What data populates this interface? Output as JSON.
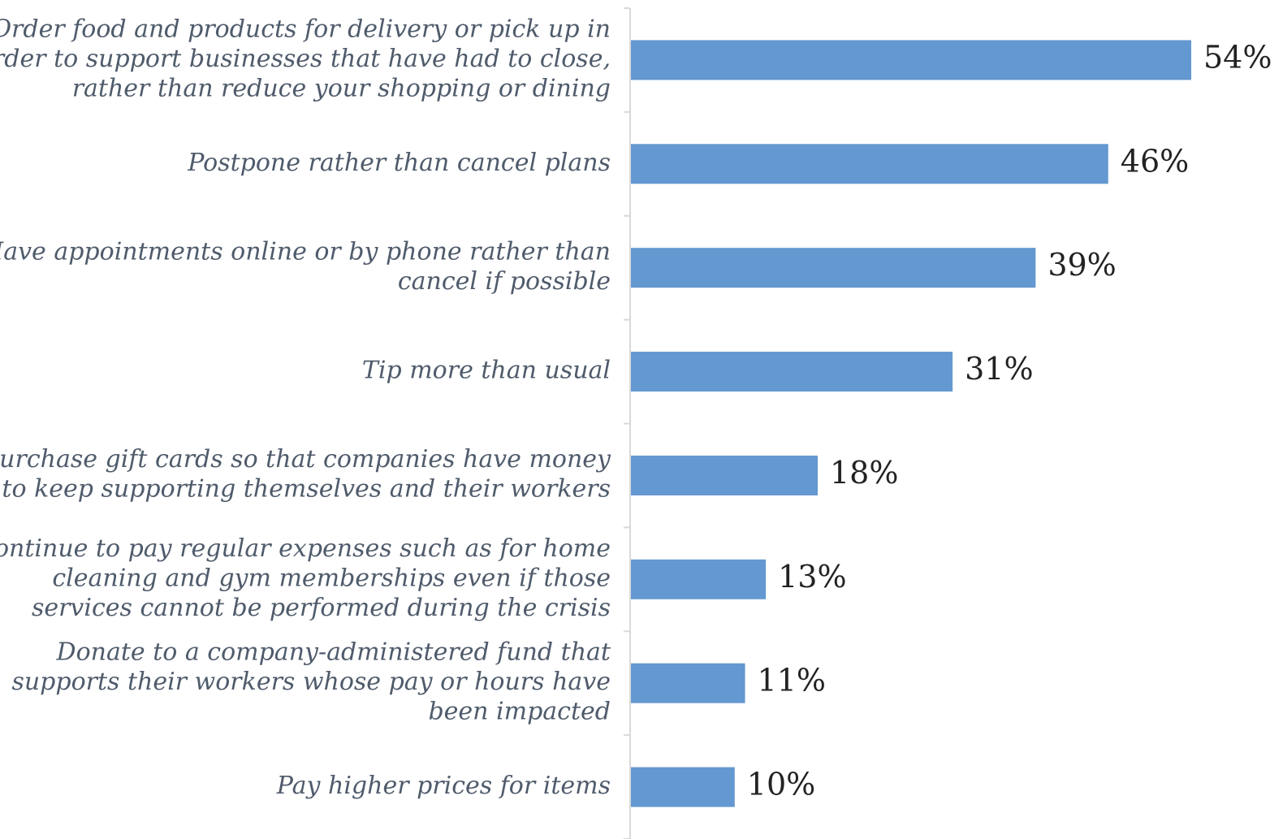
{
  "chart_data": {
    "type": "bar",
    "orientation": "horizontal",
    "title": "",
    "xlabel": "",
    "ylabel": "",
    "xlim": [
      0,
      54
    ],
    "grid": false,
    "bar_color": "#6398d0",
    "axis_color": "#d9d9d9",
    "categories": [
      [
        "Order food and products for delivery or pick up in",
        "order to support businesses that have had to close,",
        "rather than reduce your shopping or dining"
      ],
      [
        "Postpone rather than cancel plans"
      ],
      [
        "Have appointments online or by phone rather than",
        "cancel if possible"
      ],
      [
        "Tip more than usual"
      ],
      [
        "Purchase gift cards so that companies have money",
        "to keep supporting themselves and their workers"
      ],
      [
        "Continue to pay regular expenses such as for home",
        "cleaning and gym memberships even if those",
        "services cannot be performed during the crisis"
      ],
      [
        "Donate to a company-administered fund that",
        "supports their workers whose pay or hours have",
        "been impacted"
      ],
      [
        "Pay higher prices for items"
      ]
    ],
    "values": [
      54,
      46,
      39,
      31,
      18,
      13,
      11,
      10
    ],
    "value_labels": [
      "54%",
      "46%",
      "39%",
      "31%",
      "18%",
      "13%",
      "11%",
      "10%"
    ]
  }
}
